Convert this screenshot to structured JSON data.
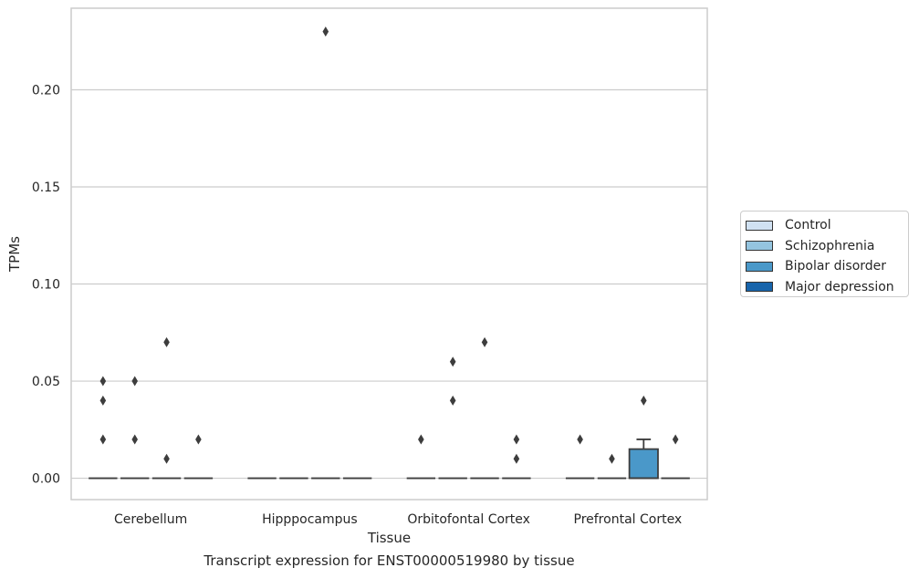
{
  "caption": "Transcript expression for ENST00000519980 by tissue",
  "chart_data": {
    "type": "box",
    "xlabel": "Tissue",
    "ylabel": "TPMs",
    "categories": [
      "Cerebellum",
      "Hipppocampus",
      "Orbitofontal Cortex",
      "Prefrontal Cortex"
    ],
    "ylim": [
      -0.011,
      0.242
    ],
    "yticks": [
      0.0,
      0.05,
      0.1,
      0.15,
      0.2
    ],
    "ytick_labels": [
      "0.00",
      "0.05",
      "0.10",
      "0.15",
      "0.20"
    ],
    "grid": true,
    "legend_position": "right",
    "series": [
      {
        "name": "Control",
        "color": "#d0e1f2",
        "boxes": [
          {
            "median": 0,
            "q1": 0,
            "q3": 0,
            "whisker_low": 0,
            "whisker_high": 0,
            "outliers": [
              0.05,
              0.04,
              0.02
            ]
          },
          {
            "median": 0,
            "q1": 0,
            "q3": 0,
            "whisker_low": 0,
            "whisker_high": 0,
            "outliers": []
          },
          {
            "median": 0,
            "q1": 0,
            "q3": 0,
            "whisker_low": 0,
            "whisker_high": 0,
            "outliers": [
              0.02
            ]
          },
          {
            "median": 0,
            "q1": 0,
            "q3": 0,
            "whisker_low": 0,
            "whisker_high": 0,
            "outliers": [
              0.02
            ]
          }
        ]
      },
      {
        "name": "Schizophrenia",
        "color": "#94c4df",
        "boxes": [
          {
            "median": 0,
            "q1": 0,
            "q3": 0,
            "whisker_low": 0,
            "whisker_high": 0,
            "outliers": [
              0.05,
              0.02
            ]
          },
          {
            "median": 0,
            "q1": 0,
            "q3": 0,
            "whisker_low": 0,
            "whisker_high": 0,
            "outliers": []
          },
          {
            "median": 0,
            "q1": 0,
            "q3": 0,
            "whisker_low": 0,
            "whisker_high": 0,
            "outliers": [
              0.06,
              0.04
            ]
          },
          {
            "median": 0,
            "q1": 0,
            "q3": 0,
            "whisker_low": 0,
            "whisker_high": 0,
            "outliers": [
              0.01
            ]
          }
        ]
      },
      {
        "name": "Bipolar disorder",
        "color": "#4a98c9",
        "boxes": [
          {
            "median": 0,
            "q1": 0,
            "q3": 0,
            "whisker_low": 0,
            "whisker_high": 0,
            "outliers": [
              0.07,
              0.01
            ]
          },
          {
            "median": 0,
            "q1": 0,
            "q3": 0,
            "whisker_low": 0,
            "whisker_high": 0,
            "outliers": [
              0.23
            ]
          },
          {
            "median": 0,
            "q1": 0,
            "q3": 0,
            "whisker_low": 0,
            "whisker_high": 0,
            "outliers": [
              0.07
            ]
          },
          {
            "median": 0,
            "q1": 0,
            "q3": 0.015,
            "whisker_low": 0,
            "whisker_high": 0.02,
            "outliers": [
              0.04
            ]
          }
        ]
      },
      {
        "name": "Major depression",
        "color": "#1764ab",
        "boxes": [
          {
            "median": 0,
            "q1": 0,
            "q3": 0,
            "whisker_low": 0,
            "whisker_high": 0,
            "outliers": [
              0.02
            ]
          },
          {
            "median": 0,
            "q1": 0,
            "q3": 0,
            "whisker_low": 0,
            "whisker_high": 0,
            "outliers": []
          },
          {
            "median": 0,
            "q1": 0,
            "q3": 0,
            "whisker_low": 0,
            "whisker_high": 0,
            "outliers": [
              0.02,
              0.01
            ]
          },
          {
            "median": 0,
            "q1": 0,
            "q3": 0,
            "whisker_low": 0,
            "whisker_high": 0,
            "outliers": [
              0.02
            ]
          }
        ]
      }
    ]
  }
}
